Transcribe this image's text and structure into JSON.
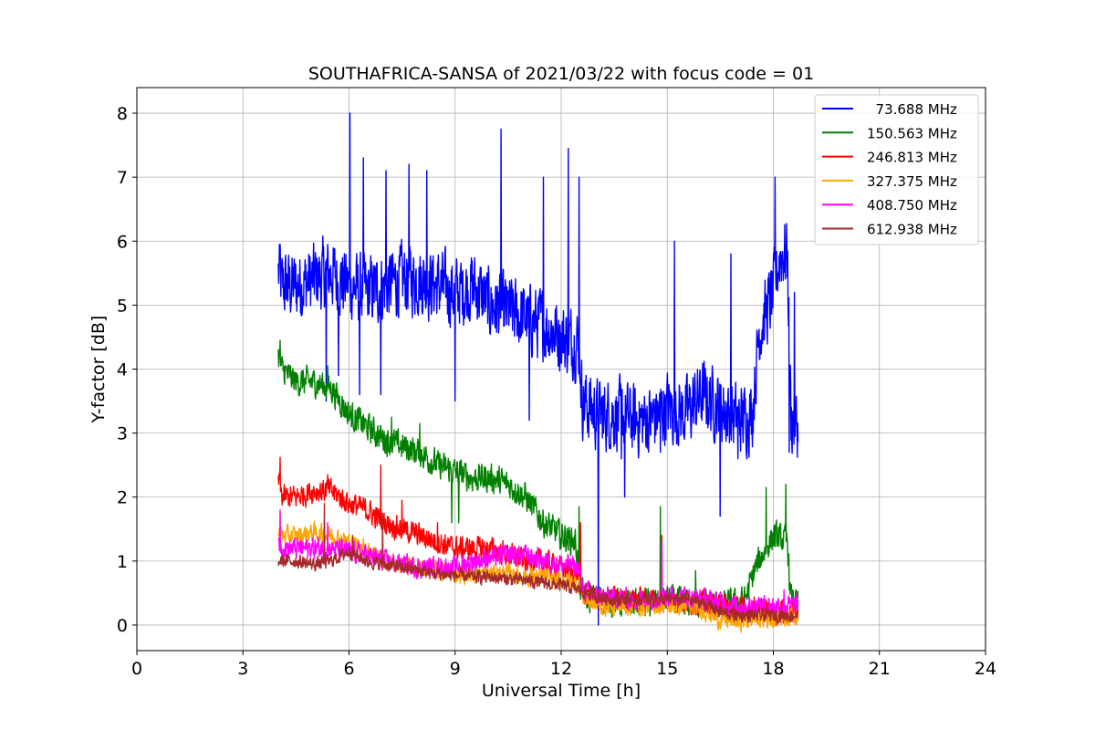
{
  "chart_data": {
    "type": "line",
    "title": "SOUTHAFRICA-SANSA of 2021/03/22 with focus code = 01",
    "xlabel": "Universal Time [h]",
    "ylabel": "Y-factor [dB]",
    "xlim": [
      0,
      24
    ],
    "ylim": [
      -0.4,
      8.4
    ],
    "xticks": [
      0,
      3,
      6,
      9,
      12,
      15,
      18,
      21,
      24
    ],
    "yticks": [
      0,
      1,
      2,
      3,
      4,
      5,
      6,
      7,
      8
    ],
    "grid": true,
    "legend_position": "top-right",
    "series": [
      {
        "name": "  73.688 MHz",
        "color": "#0000ff",
        "noise": 0.75,
        "x": [
          4.0,
          4.1,
          4.5,
          5.0,
          5.5,
          6.0,
          6.5,
          7.0,
          7.5,
          8.0,
          8.5,
          9.0,
          9.5,
          10.0,
          10.5,
          11.0,
          11.5,
          12.0,
          12.5,
          12.6,
          12.8,
          13.0,
          13.5,
          14.0,
          14.5,
          15.0,
          15.5,
          16.0,
          16.5,
          17.0,
          17.4,
          17.6,
          18.0,
          18.2,
          18.4,
          18.5,
          18.7
        ],
        "y": [
          5.5,
          5.3,
          5.3,
          5.4,
          5.5,
          5.3,
          5.2,
          5.3,
          5.4,
          5.4,
          5.3,
          5.2,
          5.3,
          5.0,
          4.9,
          4.8,
          4.7,
          4.5,
          4.4,
          3.5,
          3.4,
          3.3,
          3.3,
          3.2,
          3.2,
          3.4,
          3.3,
          3.6,
          3.4,
          3.2,
          3.3,
          4.6,
          5.2,
          5.8,
          5.8,
          3.2,
          3.1
        ],
        "spikes": [
          [
            4.05,
            5.95
          ],
          [
            6.03,
            8.0
          ],
          [
            6.4,
            7.3
          ],
          [
            7.05,
            7.1
          ],
          [
            7.7,
            7.2
          ],
          [
            8.2,
            7.1
          ],
          [
            10.3,
            7.75
          ],
          [
            11.5,
            7.0
          ],
          [
            12.2,
            7.45
          ],
          [
            12.5,
            7.0
          ],
          [
            5.7,
            3.9
          ],
          [
            5.35,
            3.5
          ],
          [
            6.3,
            3.6
          ],
          [
            6.9,
            3.6
          ],
          [
            9.0,
            3.5
          ],
          [
            11.1,
            3.2
          ],
          [
            12.55,
            3.8
          ],
          [
            13.05,
            0.0
          ],
          [
            13.2,
            3.0
          ],
          [
            13.7,
            2.6
          ],
          [
            13.8,
            2.0
          ],
          [
            14.8,
            2.7
          ],
          [
            16.5,
            1.7
          ],
          [
            17.0,
            2.6
          ],
          [
            15.2,
            6.0
          ],
          [
            16.8,
            5.8
          ],
          [
            18.05,
            7.0
          ],
          [
            18.45,
            2.7
          ],
          [
            18.6,
            5.2
          ]
        ]
      },
      {
        "name": "150.563 MHz",
        "color": "#008000",
        "noise": 0.3,
        "x": [
          4.0,
          4.1,
          4.5,
          5.0,
          5.5,
          6.0,
          6.5,
          7.0,
          7.5,
          8.0,
          8.5,
          9.0,
          9.5,
          10.0,
          10.5,
          11.0,
          11.5,
          12.0,
          12.4,
          12.6,
          12.8,
          13.0,
          13.5,
          14.0,
          14.5,
          15.0,
          15.5,
          16.0,
          16.5,
          17.0,
          17.2,
          17.5,
          18.0,
          18.4,
          18.5,
          18.7
        ],
        "y": [
          4.2,
          4.0,
          3.8,
          3.8,
          3.7,
          3.3,
          3.1,
          2.9,
          2.8,
          2.7,
          2.5,
          2.4,
          2.3,
          2.3,
          2.2,
          2.0,
          1.6,
          1.4,
          1.3,
          0.5,
          0.4,
          0.45,
          0.35,
          0.35,
          0.35,
          0.4,
          0.35,
          0.35,
          0.3,
          0.35,
          0.4,
          0.9,
          1.4,
          1.3,
          0.4,
          0.35
        ],
        "spikes": [
          [
            4.05,
            4.45
          ],
          [
            5.4,
            4.05
          ],
          [
            7.2,
            3.25
          ],
          [
            8.0,
            3.15
          ],
          [
            8.9,
            1.6
          ],
          [
            9.1,
            1.6
          ],
          [
            12.0,
            1.2
          ],
          [
            12.5,
            1.85
          ],
          [
            12.55,
            0.4
          ],
          [
            14.8,
            1.85
          ],
          [
            15.8,
            0.85
          ],
          [
            17.8,
            2.15
          ],
          [
            18.35,
            2.2
          ],
          [
            18.45,
            0.55
          ]
        ]
      },
      {
        "name": "246.813 MHz",
        "color": "#ff0000",
        "noise": 0.25,
        "x": [
          4.0,
          4.1,
          4.5,
          5.0,
          5.5,
          6.0,
          6.5,
          7.0,
          7.5,
          8.0,
          8.5,
          9.0,
          9.5,
          10.0,
          10.5,
          11.0,
          11.5,
          12.0,
          12.5,
          12.6,
          13.0,
          14.0,
          15.0,
          15.5,
          16.0,
          16.5,
          17.0,
          17.5,
          18.0,
          18.7
        ],
        "y": [
          2.3,
          2.0,
          2.0,
          2.1,
          2.1,
          1.9,
          1.8,
          1.6,
          1.5,
          1.4,
          1.3,
          1.2,
          1.2,
          1.2,
          1.1,
          1.0,
          1.0,
          0.9,
          0.8,
          0.5,
          0.4,
          0.4,
          0.4,
          0.35,
          0.35,
          0.3,
          0.25,
          0.25,
          0.2,
          0.2
        ],
        "spikes": [
          [
            4.05,
            2.62
          ],
          [
            5.4,
            2.35
          ],
          [
            6.9,
            2.5
          ],
          [
            7.5,
            1.95
          ],
          [
            8.5,
            1.6
          ],
          [
            12.55,
            1.6
          ],
          [
            14.85,
            1.4
          ]
        ]
      },
      {
        "name": "327.375 MHz",
        "color": "#ffa500",
        "noise": 0.2,
        "x": [
          4.0,
          4.1,
          4.5,
          5.0,
          5.5,
          6.0,
          6.5,
          7.0,
          7.5,
          8.0,
          8.5,
          9.0,
          9.5,
          10.0,
          10.5,
          11.0,
          11.5,
          12.0,
          12.5,
          12.6,
          13.0,
          14.0,
          15.0,
          15.5,
          16.0,
          16.4,
          17.0,
          17.5,
          18.0,
          18.7
        ],
        "y": [
          1.5,
          1.4,
          1.4,
          1.45,
          1.4,
          1.3,
          1.2,
          1.0,
          0.95,
          0.9,
          0.85,
          0.8,
          0.8,
          0.8,
          0.8,
          0.75,
          0.75,
          0.7,
          0.65,
          0.45,
          0.3,
          0.3,
          0.3,
          0.3,
          0.25,
          0.1,
          0.05,
          0.1,
          0.1,
          0.15
        ],
        "spikes": [
          [
            4.05,
            1.75
          ],
          [
            5.3,
            1.6
          ],
          [
            14.85,
            0.9
          ]
        ]
      },
      {
        "name": "408.750 MHz",
        "color": "#ff00ff",
        "noise": 0.22,
        "x": [
          4.0,
          4.1,
          4.5,
          5.0,
          5.5,
          6.0,
          6.5,
          7.0,
          7.5,
          8.0,
          8.5,
          9.0,
          9.5,
          10.0,
          10.5,
          11.0,
          11.5,
          12.0,
          12.5,
          12.6,
          13.0,
          14.0,
          15.0,
          15.5,
          16.0,
          16.5,
          17.0,
          17.5,
          18.0,
          18.7
        ],
        "y": [
          1.3,
          1.2,
          1.2,
          1.2,
          1.2,
          1.15,
          1.1,
          1.0,
          0.95,
          0.9,
          0.9,
          0.9,
          1.0,
          1.05,
          1.1,
          1.1,
          1.0,
          0.95,
          0.9,
          0.55,
          0.45,
          0.4,
          0.45,
          0.45,
          0.4,
          0.35,
          0.3,
          0.3,
          0.3,
          0.3
        ],
        "spikes": [
          [
            4.05,
            1.8
          ],
          [
            5.4,
            1.6
          ],
          [
            14.85,
            1.3
          ],
          [
            18.3,
            0.55
          ]
        ]
      },
      {
        "name": "612.938 MHz",
        "color": "#a52a2a",
        "noise": 0.14,
        "x": [
          4.0,
          4.5,
          5.0,
          5.5,
          6.0,
          6.5,
          7.0,
          7.5,
          8.0,
          8.5,
          9.0,
          9.5,
          10.0,
          10.5,
          11.0,
          11.5,
          12.0,
          12.5,
          13.0,
          13.5,
          14.0,
          15.0,
          15.5,
          16.0,
          16.2,
          16.5,
          17.0,
          17.5,
          18.0,
          18.7
        ],
        "y": [
          1.0,
          1.0,
          0.95,
          1.0,
          1.15,
          1.0,
          0.95,
          0.9,
          0.85,
          0.8,
          0.78,
          0.75,
          0.75,
          0.72,
          0.7,
          0.65,
          0.62,
          0.55,
          0.45,
          0.4,
          0.4,
          0.4,
          0.4,
          0.35,
          0.3,
          0.2,
          0.15,
          0.15,
          0.15,
          0.15
        ],
        "spikes": [
          [
            5.3,
            1.9
          ],
          [
            6.1,
            1.4
          ],
          [
            6.95,
            1.75
          ],
          [
            13.6,
            0.3
          ]
        ]
      }
    ]
  }
}
